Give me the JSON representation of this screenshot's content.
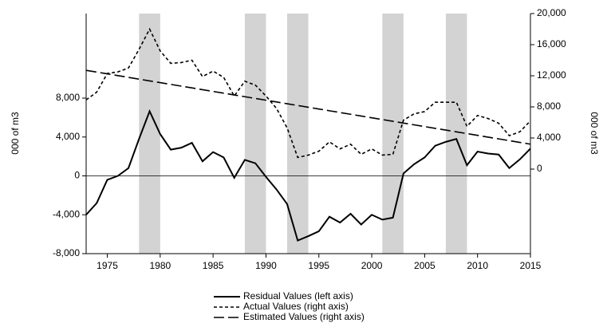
{
  "chart_data": {
    "type": "line",
    "x": [
      1973,
      1974,
      1975,
      1976,
      1977,
      1978,
      1979,
      1980,
      1981,
      1982,
      1983,
      1984,
      1985,
      1986,
      1987,
      1988,
      1989,
      1990,
      1991,
      1992,
      1993,
      1994,
      1995,
      1996,
      1997,
      1998,
      1999,
      2000,
      2001,
      2002,
      2003,
      2004,
      2005,
      2006,
      2007,
      2008,
      2009,
      2010,
      2011,
      2012,
      2013,
      2014,
      2015
    ],
    "xlim": [
      1973,
      2015
    ],
    "xticks": [
      1975,
      1980,
      1985,
      1990,
      1995,
      2000,
      2005,
      2010,
      2015
    ],
    "ylabel": "000 of m3",
    "y2label": "000 of m3",
    "ylim": [
      -8000,
      16700
    ],
    "yticks": [
      {
        "value": -8000,
        "label": "-8,000"
      },
      {
        "value": -4000,
        "label": "-4,000"
      },
      0,
      {
        "value": 4000,
        "label": "4,000"
      },
      {
        "value": 8000,
        "label": "8,000"
      }
    ],
    "y2lim": [
      -10870,
      20000
    ],
    "y2ticks": [
      0,
      {
        "value": 4000,
        "label": "4,000"
      },
      {
        "value": 8000,
        "label": "8,000"
      },
      {
        "value": 12000,
        "label": "12,000"
      },
      {
        "value": 16000,
        "label": "16,000"
      },
      {
        "value": 20000,
        "label": "20,000"
      }
    ],
    "shaded_periods": [
      [
        1978,
        1980
      ],
      [
        1988,
        1990
      ],
      [
        1992,
        1994
      ],
      [
        2001,
        2003
      ],
      [
        2007,
        2009
      ]
    ],
    "shade_color": "#d3d3d3",
    "series": [
      {
        "name": "Residual Values (left axis)",
        "color": "#000000",
        "style": "solid",
        "values": [
          -4000,
          -2800,
          -400,
          0,
          800,
          3800,
          6650,
          4300,
          2700,
          2900,
          3400,
          1500,
          2450,
          1900,
          -200,
          1650,
          1300,
          -100,
          -1400,
          -2900,
          -6650,
          -6200,
          -5700,
          -4200,
          -4800,
          -3900,
          -5000,
          -4000,
          -4500,
          -4300,
          250,
          1200,
          1900,
          3100,
          3500,
          3800,
          1100,
          2500,
          2300,
          2200,
          800,
          1700,
          2800
        ]
      },
      {
        "name": "Actual Values (right axis)",
        "color": "#000000",
        "style": "dashed",
        "axis": "y2",
        "values": [
          8900,
          9900,
          12300,
          12500,
          13000,
          15400,
          18000,
          15200,
          13600,
          13700,
          14000,
          11900,
          12600,
          11800,
          9400,
          11300,
          10800,
          9400,
          7800,
          5300,
          1500,
          1800,
          2300,
          3500,
          2600,
          3200,
          1900,
          2600,
          1800,
          1900,
          6300,
          7100,
          7400,
          8600,
          8600,
          8600,
          5500,
          6900,
          6500,
          5900,
          4300,
          4800,
          6200
        ]
      },
      {
        "name": "Estimated Values (right axis)",
        "color": "#000000",
        "style": "long-dash",
        "axis": "y2",
        "values": [
          12700,
          12474,
          12248,
          12022,
          11796,
          11570,
          11344,
          11118,
          10892,
          10666,
          10440,
          10214,
          9988,
          9762,
          9536,
          9310,
          9084,
          8858,
          8632,
          8406,
          8180,
          7954,
          7728,
          7502,
          7276,
          7050,
          6824,
          6598,
          6372,
          6146,
          5920,
          5694,
          5468,
          5242,
          5016,
          4790,
          4564,
          4338,
          4112,
          3886,
          3660,
          3434,
          3208
        ]
      }
    ]
  }
}
